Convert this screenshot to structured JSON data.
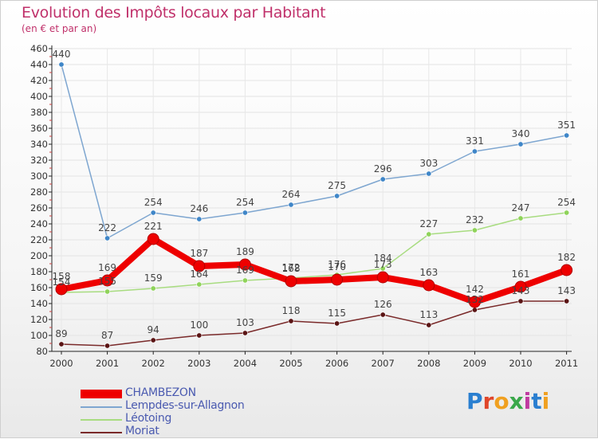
{
  "header": {
    "title": "Evolution des Impôts locaux par Habitant",
    "subtitle": "(en € et par an)"
  },
  "brand": {
    "letters": [
      "P",
      "r",
      "o",
      "x",
      "i",
      "t",
      "i"
    ],
    "colors": [
      "#2a7fd0",
      "#e0462a",
      "#f0a020",
      "#3aa84a",
      "#c03aa0",
      "#2a7fd0",
      "#f0a020"
    ]
  },
  "chart_data": {
    "type": "line",
    "title": "Evolution des Impôts locaux par Habitant",
    "subtitle": "(en € et par an)",
    "xlabel": "",
    "ylabel": "",
    "x": [
      "2000",
      "2001",
      "2002",
      "2003",
      "2004",
      "2005",
      "2006",
      "2007",
      "2008",
      "2009",
      "2010",
      "2011"
    ],
    "ylim": [
      80,
      460
    ],
    "yticks": [
      80,
      100,
      120,
      140,
      160,
      180,
      200,
      220,
      240,
      260,
      280,
      300,
      320,
      340,
      360,
      380,
      400,
      420,
      440,
      460
    ],
    "legend_position": "bottom-left",
    "series": [
      {
        "name": "CHAMBEZON",
        "color": "#ee0000",
        "emphasis": true,
        "values": [
          158,
          169,
          221,
          187,
          189,
          168,
          170,
          173,
          163,
          142,
          161,
          182
        ]
      },
      {
        "name": "Lempdes-sur-Allagnon",
        "color": "#7ea6d0",
        "point_color": "#3f86c8",
        "values": [
          440,
          222,
          254,
          246,
          254,
          264,
          275,
          296,
          303,
          331,
          340,
          351
        ]
      },
      {
        "name": "Léotoing",
        "color": "#a8dc80",
        "point_color": "#8fd35a",
        "values": [
          154,
          155,
          159,
          164,
          169,
          172,
          176,
          184,
          227,
          232,
          247,
          254
        ]
      },
      {
        "name": "Moriat",
        "color": "#7a2a2a",
        "point_color": "#5a1414",
        "values": [
          89,
          87,
          94,
          100,
          103,
          118,
          115,
          126,
          113,
          132,
          143,
          143
        ]
      }
    ],
    "data_labels": {
      "CHAMBEZON": [
        "158",
        "169",
        "221",
        "187",
        "189",
        "168",
        "170",
        "173",
        "163",
        "142",
        "161",
        "182"
      ],
      "Lempdes-sur-Allagnon": [
        "440",
        "222",
        "254",
        "246",
        "254",
        "264",
        "275",
        "296",
        "303",
        "331",
        "340",
        "351"
      ],
      "Léotoing": [
        "154",
        "155",
        "159",
        "164",
        "169",
        "172",
        "176",
        "184",
        "227",
        "232",
        "247",
        "254"
      ],
      "Moriat": [
        "89",
        "87",
        "94",
        "100",
        "103",
        "118",
        "115",
        "126",
        "113",
        "132",
        "143",
        "143"
      ]
    }
  }
}
